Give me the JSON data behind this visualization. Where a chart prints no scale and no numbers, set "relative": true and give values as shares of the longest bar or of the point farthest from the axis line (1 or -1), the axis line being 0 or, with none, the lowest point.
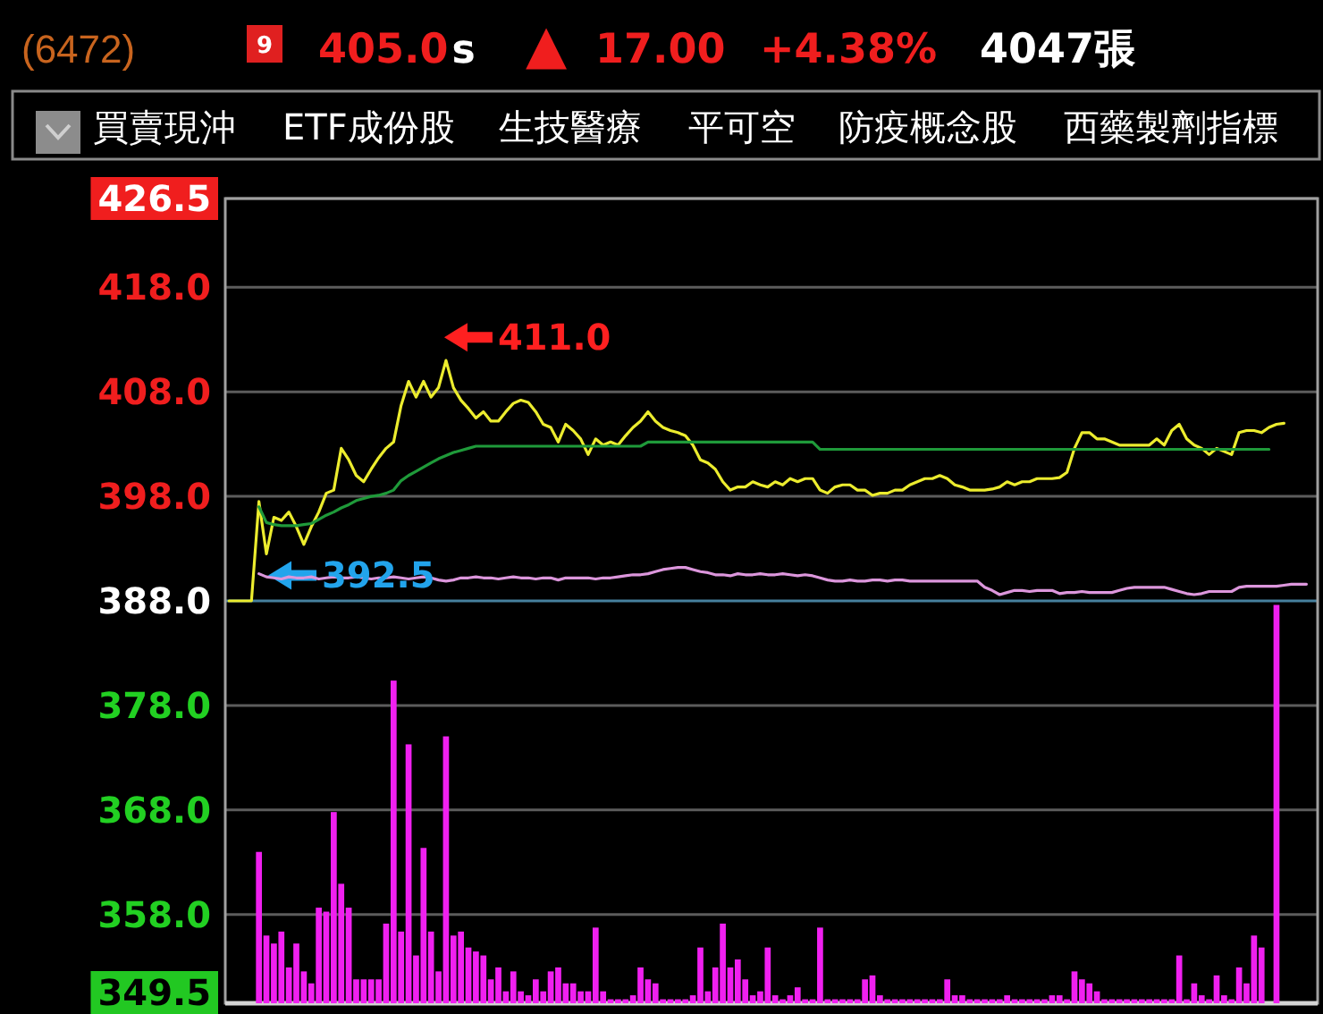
{
  "chart_data": [
    {
      "type": "line",
      "title": "(6472)",
      "annotations": [
        "9",
        "405.0",
        "s",
        "▲",
        "17.00",
        "+4.38%",
        "4047張",
        "買賣現沖",
        "ETF成份股",
        "生技醫療",
        "平可空",
        "防疫概念股",
        "西藥製劑指標",
        "411.0",
        "392.5"
      ],
      "categories": [
        null,
        null,
        null,
        null,
        null,
        null,
        null,
        null,
        null,
        null,
        null,
        null,
        null,
        null,
        null,
        null,
        null,
        null,
        null,
        null,
        null,
        null,
        null,
        null,
        null,
        null,
        null,
        null,
        null,
        null,
        null,
        null,
        null,
        null,
        null,
        null,
        null,
        null,
        null,
        null,
        null,
        null,
        null,
        null,
        null,
        null,
        null,
        null,
        null,
        null,
        null,
        null,
        null,
        null,
        null,
        null,
        null,
        null,
        null,
        null,
        null,
        null,
        null,
        null,
        null,
        null,
        null,
        null,
        null,
        null,
        null,
        null,
        null,
        null,
        null,
        null,
        null,
        null,
        null,
        null,
        null,
        null,
        null,
        null,
        null,
        null,
        null,
        null,
        null,
        null,
        null,
        null,
        null,
        null,
        null,
        null,
        null,
        null,
        null,
        null,
        null,
        null,
        null,
        null,
        null,
        null,
        null,
        null,
        null,
        null,
        null,
        null,
        null,
        null,
        null,
        null,
        null,
        null,
        null,
        null,
        null,
        null,
        null,
        null,
        null,
        null,
        null,
        null,
        null,
        null,
        null,
        null,
        null,
        null,
        null,
        null,
        null,
        null,
        null,
        null,
        null,
        null,
        null,
        null,
        null,
        null
      ],
      "series": [
        {
          "color": "#ecec2e",
          "values": [
            388.0,
            388.0,
            388.0,
            388.0,
            397.5,
            392.5,
            396.0,
            395.7,
            396.5,
            395.1,
            393.4,
            395.1,
            396.5,
            398.3,
            398.6,
            402.6,
            401.5,
            400.0,
            399.4,
            400.6,
            401.7,
            402.6,
            403.2,
            406.7,
            409.0,
            407.5,
            409.0,
            407.5,
            408.4,
            411.0,
            408.4,
            407.2,
            406.4,
            405.5,
            406.1,
            405.2,
            405.2,
            406.1,
            406.9,
            407.2,
            407.0,
            406.1,
            404.9,
            404.6,
            403.2,
            404.9,
            404.3,
            403.5,
            402.0,
            403.5,
            402.9,
            403.2,
            402.9,
            403.8,
            404.6,
            405.2,
            406.1,
            405.2,
            404.6,
            404.3,
            404.1,
            403.8,
            402.9,
            401.5,
            401.2,
            400.6,
            399.4,
            398.6,
            398.9,
            398.9,
            399.4,
            399.1,
            398.9,
            399.4,
            399.1,
            399.7,
            399.4,
            399.7,
            399.7,
            398.6,
            398.3,
            398.9,
            399.1,
            399.1,
            398.6,
            398.6,
            398.1,
            398.3,
            398.3,
            398.6,
            398.6,
            399.1,
            399.4,
            399.7,
            399.7,
            400.0,
            399.7,
            399.1,
            398.9,
            398.6,
            398.6,
            398.6,
            398.7,
            398.9,
            399.4,
            399.1,
            399.4,
            399.4,
            399.7,
            399.7,
            399.7,
            399.8,
            400.3,
            402.6,
            404.1,
            404.1,
            403.5,
            403.5,
            403.2,
            402.9,
            402.9,
            402.9,
            402.9,
            402.9,
            403.5,
            402.9,
            404.3,
            404.9,
            403.5,
            402.9,
            402.6,
            402.0,
            402.6,
            402.3,
            402.0,
            404.1,
            404.3,
            404.3,
            404.1,
            404.6,
            404.9,
            405.0,
            null,
            null,
            null,
            null
          ]
        },
        {
          "color": "#1f9a3a",
          "values": [
            null,
            null,
            null,
            null,
            397.0,
            395.5,
            395.3,
            395.2,
            395.2,
            395.2,
            395.3,
            395.4,
            395.8,
            396.2,
            396.5,
            396.9,
            397.2,
            397.6,
            397.8,
            398.0,
            398.1,
            398.3,
            398.6,
            399.5,
            400.0,
            400.4,
            400.8,
            401.2,
            401.6,
            401.9,
            402.2,
            402.4,
            402.6,
            402.8,
            402.8,
            402.8,
            402.8,
            402.8,
            402.8,
            402.8,
            402.8,
            402.8,
            402.8,
            402.8,
            402.8,
            402.8,
            402.8,
            402.8,
            402.8,
            402.8,
            402.8,
            402.8,
            402.8,
            402.8,
            402.8,
            402.8,
            403.2,
            403.2,
            403.2,
            403.2,
            403.2,
            403.2,
            403.2,
            403.2,
            403.2,
            403.2,
            403.2,
            403.2,
            403.2,
            403.2,
            403.2,
            403.2,
            403.2,
            403.2,
            403.2,
            403.2,
            403.2,
            403.2,
            403.2,
            402.5,
            402.5,
            402.5,
            402.5,
            402.5,
            402.5,
            402.5,
            402.5,
            402.5,
            402.5,
            402.5,
            402.5,
            402.5,
            402.5,
            402.5,
            402.5,
            402.5,
            402.5,
            402.5,
            402.5,
            402.5,
            402.5,
            402.5,
            402.5,
            402.5,
            402.5,
            402.5,
            402.5,
            402.5,
            402.5,
            402.5,
            402.5,
            402.5,
            402.5,
            402.5,
            402.5,
            402.5,
            402.5,
            402.5,
            402.5,
            402.5,
            402.5,
            402.5,
            402.5,
            402.5,
            402.5,
            402.5,
            402.5,
            402.5,
            402.5,
            402.5,
            402.5,
            402.5,
            402.5,
            402.5,
            402.5,
            402.5,
            402.5,
            402.5,
            402.5,
            402.5,
            null,
            null,
            null,
            null,
            null,
            null
          ]
        },
        {
          "color": "#dc96dc",
          "values": [
            null,
            null,
            null,
            null,
            390.6,
            390.3,
            390.2,
            390.1,
            390.3,
            390.2,
            390.2,
            390.3,
            390.1,
            390.2,
            390.3,
            390.2,
            390.2,
            390.3,
            390.2,
            390.1,
            390.2,
            390.2,
            390.3,
            390.2,
            390.1,
            390.2,
            390.3,
            390.2,
            390.0,
            389.9,
            390.0,
            390.2,
            390.2,
            390.3,
            390.2,
            390.2,
            390.1,
            390.2,
            390.3,
            390.2,
            390.2,
            390.1,
            390.2,
            390.2,
            390.0,
            390.2,
            390.2,
            390.2,
            390.2,
            390.1,
            390.2,
            390.2,
            390.3,
            390.4,
            390.5,
            390.5,
            390.6,
            390.8,
            391.0,
            391.1,
            391.2,
            391.2,
            391.0,
            390.8,
            390.7,
            390.5,
            390.5,
            390.4,
            390.6,
            390.5,
            390.5,
            390.6,
            390.5,
            390.5,
            390.6,
            390.5,
            390.4,
            390.5,
            390.4,
            390.2,
            390.0,
            389.9,
            389.9,
            390.0,
            389.9,
            389.9,
            390.0,
            390.0,
            389.9,
            390.0,
            390.0,
            389.9,
            389.9,
            389.9,
            389.9,
            389.9,
            389.9,
            389.9,
            389.9,
            389.9,
            389.9,
            389.3,
            389.0,
            388.6,
            388.8,
            389.0,
            389.0,
            388.9,
            389.0,
            389.0,
            389.0,
            388.7,
            388.8,
            388.8,
            388.9,
            388.8,
            388.8,
            388.8,
            388.8,
            389.0,
            389.2,
            389.3,
            389.3,
            389.3,
            389.3,
            389.3,
            389.1,
            388.9,
            388.7,
            388.6,
            388.7,
            388.9,
            388.9,
            388.9,
            388.9,
            389.3,
            389.4,
            389.4,
            389.4,
            389.4,
            389.4,
            389.5,
            389.6,
            389.6,
            389.6,
            null
          ]
        }
      ],
      "ylim": [
        349.5,
        426.5
      ],
      "yticks": [
        426.5,
        {
          "value": 418.0,
          "label": "418.0"
        },
        {
          "value": 408.0,
          "label": "408.0"
        },
        {
          "value": 398.0,
          "label": "398.0"
        },
        {
          "value": 388.0,
          "label": "388.0"
        },
        {
          "value": 378.0,
          "label": "378.0"
        },
        {
          "value": 368.0,
          "label": "368.0"
        },
        {
          "value": 358.0,
          "label": "358.0"
        },
        349.5
      ],
      "grid": "y",
      "ref_lines": [
        {
          "axis": "y",
          "value": 388.0,
          "color": "#46809e"
        }
      ]
    },
    {
      "type": "bar",
      "relative": true,
      "color": "#f020f0",
      "categories": [
        null,
        null,
        null,
        null,
        null,
        null,
        null,
        null,
        null,
        null,
        null,
        null,
        null,
        null,
        null,
        null,
        null,
        null,
        null,
        null,
        null,
        null,
        null,
        null,
        null,
        null,
        null,
        null,
        null,
        null,
        null,
        null,
        null,
        null,
        null,
        null,
        null,
        null,
        null,
        null,
        null,
        null,
        null,
        null,
        null,
        null,
        null,
        null,
        null,
        null,
        null,
        null,
        null,
        null,
        null,
        null,
        null,
        null,
        null,
        null,
        null,
        null,
        null,
        null,
        null,
        null,
        null,
        null,
        null,
        null,
        null,
        null,
        null,
        null,
        null,
        null,
        null,
        null,
        null,
        null,
        null,
        null,
        null,
        null,
        null,
        null,
        null,
        null,
        null,
        null,
        null,
        null,
        null,
        null,
        null,
        null,
        null,
        null,
        null,
        null,
        null,
        null,
        null,
        null,
        null,
        null,
        null,
        null,
        null,
        null,
        null,
        null,
        null,
        null,
        null,
        null,
        null,
        null,
        null,
        null,
        null,
        null,
        null,
        null,
        null,
        null,
        null,
        null,
        null,
        null,
        null,
        null,
        null,
        null,
        null,
        null,
        null,
        null,
        null,
        null,
        null,
        null,
        null,
        null,
        null,
        null
      ],
      "values": [
        null,
        null,
        null,
        null,
        0.38,
        0.17,
        0.15,
        0.18,
        0.09,
        0.15,
        0.08,
        0.05,
        0.24,
        0.23,
        0.48,
        0.3,
        0.24,
        0.06,
        0.06,
        0.06,
        0.06,
        0.2,
        0.81,
        0.18,
        0.65,
        0.12,
        0.39,
        0.18,
        0.08,
        0.67,
        0.17,
        0.18,
        0.14,
        0.13,
        0.12,
        0.06,
        0.09,
        0.03,
        0.08,
        0.03,
        0.02,
        0.06,
        0.03,
        0.08,
        0.09,
        0.05,
        0.05,
        0.03,
        0.03,
        0.19,
        0.03,
        0.01,
        0.01,
        0.01,
        0.02,
        0.09,
        0.06,
        0.05,
        0.01,
        0.01,
        0.01,
        0.01,
        0.02,
        0.14,
        0.03,
        0.09,
        0.2,
        0.09,
        0.11,
        0.06,
        0.02,
        0.03,
        0.14,
        0.02,
        0.01,
        0.02,
        0.04,
        0.01,
        0.01,
        0.19,
        0.01,
        0.01,
        0.01,
        0.01,
        0.01,
        0.06,
        0.07,
        0.02,
        0.01,
        0.01,
        0.01,
        0.01,
        0.01,
        0.01,
        0.01,
        0.01,
        0.06,
        0.02,
        0.02,
        0.01,
        0.01,
        0.01,
        0.01,
        0.01,
        0.02,
        0.01,
        0.01,
        0.01,
        0.01,
        0.01,
        0.02,
        0.02,
        0.01,
        0.08,
        0.06,
        0.05,
        0.03,
        0.01,
        0.01,
        0.01,
        0.01,
        0.01,
        0.01,
        0.01,
        0.01,
        0.01,
        0.01,
        0.12,
        0.01,
        0.05,
        0.02,
        0.01,
        0.07,
        0.02,
        0.01,
        0.09,
        0.05,
        0.17,
        0.14,
        null,
        1,
        null,
        null,
        null,
        null,
        null
      ]
    }
  ]
}
